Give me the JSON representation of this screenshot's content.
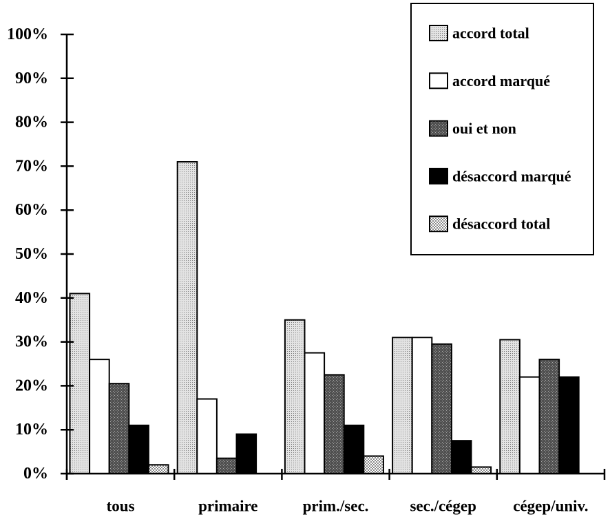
{
  "chart_data": {
    "type": "bar",
    "categories": [
      "tous",
      "primaire",
      "prim./sec.",
      "sec./cégep",
      "cégep/univ."
    ],
    "series": [
      {
        "name": "accord total",
        "values": [
          41,
          71,
          35,
          31,
          30.5
        ],
        "color": "#e3e3e3"
      },
      {
        "name": "accord marqué",
        "values": [
          26,
          17,
          27.5,
          31,
          22
        ],
        "color": "#ffffff"
      },
      {
        "name": "oui et non",
        "values": [
          20.5,
          3.5,
          22.5,
          29.5,
          26
        ],
        "color": "#505050"
      },
      {
        "name": "désaccord marqué",
        "values": [
          11,
          9,
          11,
          7.5,
          22
        ],
        "color": "#000000"
      },
      {
        "name": "désaccord total",
        "values": [
          2,
          0,
          4,
          1.5,
          0
        ],
        "color": "#8a8a8a"
      }
    ],
    "y_tick_labels": [
      "0%",
      "10%",
      "20%",
      "30%",
      "40%",
      "50%",
      "60%",
      "70%",
      "80%",
      "90%",
      "100%"
    ],
    "ylim": [
      0,
      100
    ],
    "grid": false,
    "legend": "top-right"
  }
}
